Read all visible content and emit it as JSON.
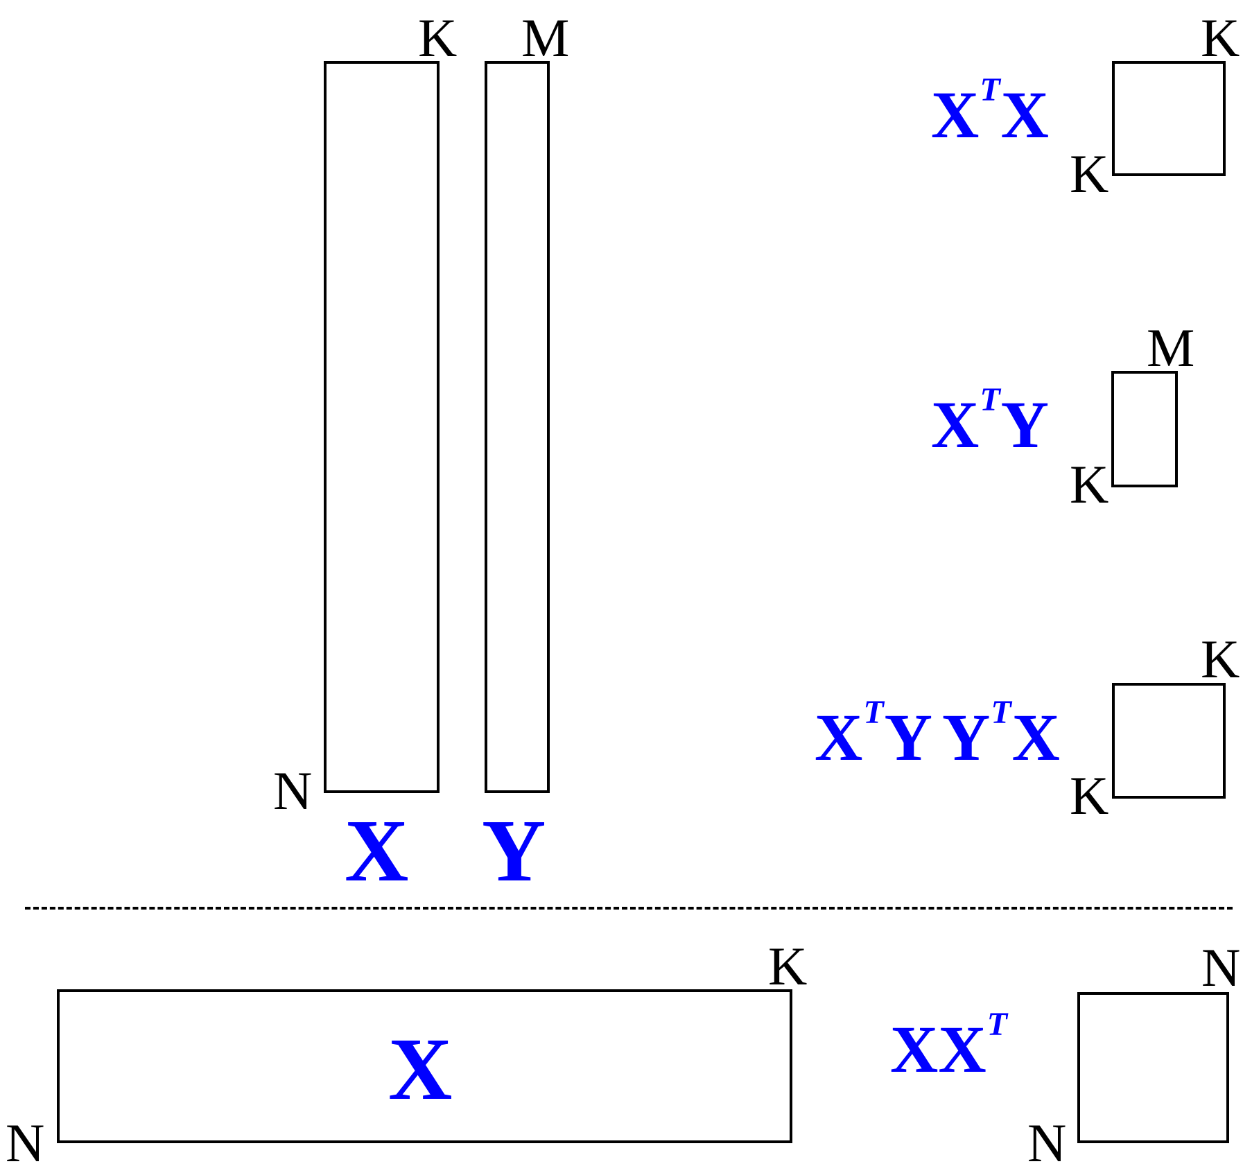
{
  "matrices": {
    "x_tall": {
      "name": "X",
      "rows": "N",
      "cols": "K"
    },
    "y_tall": {
      "name": "Y",
      "rows": "N",
      "cols": "M"
    },
    "x_wide": {
      "name": "X",
      "rows": "N",
      "cols": "K"
    }
  },
  "products": {
    "xtx": {
      "base": "X",
      "sup": "T",
      "tail": "X",
      "rows": "K",
      "cols": "K"
    },
    "xty": {
      "base": "X",
      "sup": "T",
      "tail": "Y",
      "rows": "K",
      "cols": "M"
    },
    "xtyytx": {
      "a": "X",
      "sup1": "T",
      "b": "Y",
      "c": "Y",
      "sup2": "T",
      "d": "X",
      "rows": "K",
      "cols": "K"
    },
    "xxt": {
      "base": "XX",
      "sup": "T",
      "rows": "N",
      "cols": "N"
    }
  },
  "colors": {
    "label": "#0000ff",
    "stroke": "#000000"
  }
}
